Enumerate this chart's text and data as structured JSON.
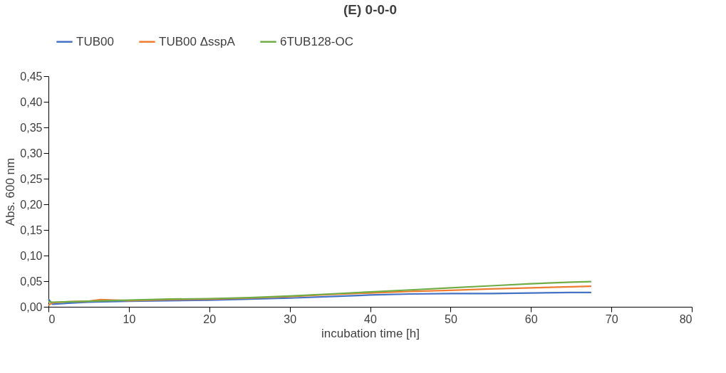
{
  "chart_data": {
    "type": "line",
    "title": "(E) 0-0-0",
    "xlabel": "incubation time [h]",
    "ylabel": "Abs. 600 nm",
    "series": [
      {
        "name": "TUB00",
        "color": "#4472c4",
        "x": [
          0,
          0.5,
          2.5,
          5,
          10,
          15,
          20,
          25,
          30,
          35,
          40,
          45,
          50,
          55,
          60,
          65,
          67.5
        ],
        "values": [
          0.015,
          0.005,
          0.007,
          0.009,
          0.011,
          0.012,
          0.013,
          0.015,
          0.017,
          0.02,
          0.023,
          0.025,
          0.026,
          0.026,
          0.027,
          0.028,
          0.028
        ]
      },
      {
        "name": "TUB00 ΔsspA",
        "color": "#ed7d31",
        "x": [
          0,
          0.5,
          2.5,
          5,
          6.5,
          10,
          15,
          20,
          25,
          30,
          35,
          40,
          45,
          50,
          55,
          60,
          65,
          67.5
        ],
        "values": [
          0.003,
          0.008,
          0.01,
          0.011,
          0.014,
          0.012,
          0.014,
          0.015,
          0.017,
          0.02,
          0.024,
          0.027,
          0.03,
          0.032,
          0.035,
          0.037,
          0.039,
          0.04
        ]
      },
      {
        "name": "6TUB128-OC",
        "color": "#70ad47",
        "x": [
          0,
          0.5,
          2.5,
          5,
          10,
          15,
          20,
          25,
          30,
          35,
          40,
          45,
          50,
          55,
          60,
          65,
          67.5
        ],
        "values": [
          0.01,
          0.009,
          0.01,
          0.011,
          0.013,
          0.015,
          0.016,
          0.018,
          0.021,
          0.025,
          0.029,
          0.033,
          0.037,
          0.041,
          0.045,
          0.048,
          0.049
        ]
      }
    ],
    "xlim": [
      0,
      80
    ],
    "xticks": [
      0,
      10,
      20,
      30,
      40,
      50,
      60,
      70,
      80
    ],
    "ylim": [
      0,
      0.45
    ],
    "yticks": [
      {
        "value": 0,
        "label": "0,00"
      },
      {
        "value": 0.05,
        "label": "0,05"
      },
      {
        "value": 0.1,
        "label": "0,10"
      },
      {
        "value": 0.15,
        "label": "0,15"
      },
      {
        "value": 0.2,
        "label": "0,20"
      },
      {
        "value": 0.25,
        "label": "0,25"
      },
      {
        "value": 0.3,
        "label": "0,30"
      },
      {
        "value": 0.35,
        "label": "0,35"
      },
      {
        "value": 0.4,
        "label": "0,40"
      },
      {
        "value": 0.45,
        "label": "0,45"
      }
    ],
    "grid": false,
    "legend": "top",
    "marker": "none",
    "line_style": "solid"
  }
}
